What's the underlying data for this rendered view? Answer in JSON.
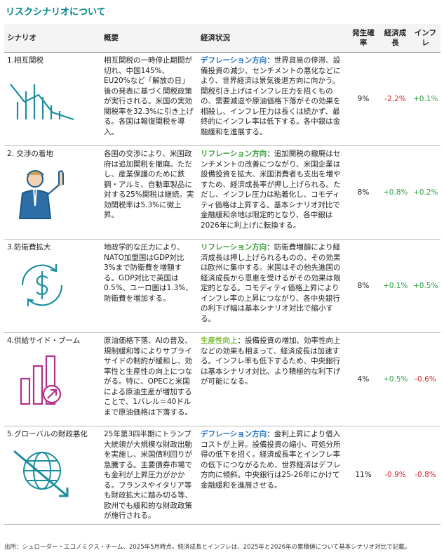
{
  "title": "リスクシナリオについて",
  "table": {
    "headers": [
      "シナリオ",
      "概要",
      "経済状況",
      "発生確率",
      "経済成長",
      "インフレ"
    ],
    "rows": [
      [
        "1.相互関税",
        "相互関税の一時停止期間が切れ、中国145%、EU20%など「解放の日」後の発表に基づく関税政策が実行される。米国の実効関税率を32.3%に引き上げる。各国は報復関税を導入。",
        {
          "lead": "デフレーション方向",
          "text": "：世界貿易の停滞、設備投資の減少、センチメントの悪化などにより、世界経済は景気後退方向に向かう。関税引き上げはインフレ圧力を招くものの、需要減退や原油価格下落がその効果を相殺し、インフレ圧力は長くは続かず、最終的にインフレ率は低下する。各中銀は金融緩和を進展する。"
        },
        "9%",
        "-2.2%",
        "+0.1%"
      ],
      [
        "2. 交渉の着地",
        "各国の交渉により、米国政府は追加関税を撤廃。ただし、産業保護のために鉄鋼・アルミ、自動車製品に対する25%関税は継続。実効関税率は5.3%に微上昇。",
        {
          "lead": "リフレーション方向",
          "text": "：追加関税の撤廃はセンチメントの改善につながり、米国企業は設備投資を拡大、米国消費者も支出を増やすため、経済成長率が押し上げられる。ただし、インフレ圧力は粘着化し、コモディティ価格は上昇する。基本シナリオ対比で金融緩和余地は限定的となり、各中銀は2026年に利上げに転換する。"
        },
        "8%",
        "+0.8%",
        "+0.2%"
      ],
      [
        "3.防衛費拡大",
        "地政学的な圧力により、NATO加盟国はGDP対比3%まで防衛費を増額する。GDP対比で英国は0.5%、ユーロ圏は1.3%、防衛費を増加する。",
        {
          "lead": "リフレーション方向",
          "text": "：防衛費増額により経済成長は押し上げられるものの、その効果は欧州に集中する。米国はその他先進国の経済成長から恩恵を受けるがその効果は限定的となる。コモディティ価格上昇によりインフレ率の上昇につながり、各中央銀行の利下げ幅は基本シナリオ対比で縮小する。"
        },
        "8%",
        "+0.1%",
        "+0.5%"
      ],
      [
        "4.供給サイド・ブーム",
        "原油価格下落、AIの普及、規制緩和等によりサプライサイドの制約が緩和し、効率性と生産性の向上につながる。特に、OPECと米国による原油生産が増加することで、1バレル＝40ドルまで原油価格は下落する。",
        {
          "lead": "生産性向上",
          "text": "：設備投資の増加、効率性向上などの効果も相まって、経済成長は加速する。インフレ率も低下するため、中央銀行は基本シナリオ対比、より積極的な利下げが可能になる。"
        },
        "4%",
        "+0.5%",
        "-0.6%"
      ],
      [
        "5.グローバルの財政悪化",
        "25年第3四半期にトランプ大統領が大規模な財政出動を実施し、米国債利回りが急騰する。主要債券市場でも金利が上昇圧力がかかる。フランスやイタリア等も財政拡大に踏み切る等、欧州でも緩和的な財政政策が施行される。",
        {
          "lead": "デフレーション方向",
          "text": "：金利上昇により借入コストが上昇。設備投資の縮小、可処分所得の低下を招く。経済成長率とインフレ率の低下につながるため、世界経済はデフレ方向に傾斜。中央銀行は25-26年にかけて金融緩和を進展させる。"
        },
        "11%",
        "-0.9%",
        "-0.8%"
      ]
    ]
  },
  "footer": "出所：シュローダー・エコノミクス・チーム、2025年5月時点。経済成長とインフレは、2025年と2026年の累積値について基本シナリオ対比で記載。"
}
